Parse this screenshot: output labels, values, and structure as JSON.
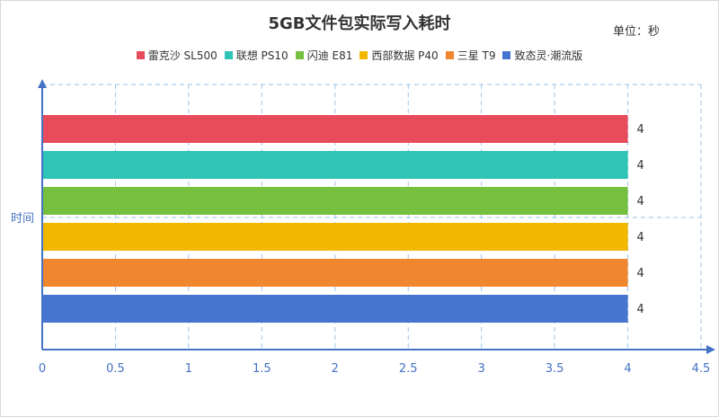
{
  "chart_data": {
    "type": "bar",
    "orientation": "horizontal",
    "title": "5GB文件包实际写入耗时",
    "unit_label": "单位：秒",
    "ylabel": "时间",
    "xlabel": "",
    "xlim": [
      0,
      4.5
    ],
    "x_ticks": [
      "0",
      "0.5",
      "1",
      "1.5",
      "2",
      "2.5",
      "3",
      "3.5",
      "4",
      "4.5"
    ],
    "grid": true,
    "legend_position": "top",
    "series": [
      {
        "name": "雷克沙 SL500",
        "value": 4,
        "label": "4",
        "color": "#e84c5b"
      },
      {
        "name": "联想 PS10",
        "value": 4,
        "label": "4",
        "color": "#2ec4b6"
      },
      {
        "name": "闪迪 E81",
        "value": 4,
        "label": "4",
        "color": "#76bf3f"
      },
      {
        "name": "西部数据 P40",
        "value": 4,
        "label": "4",
        "color": "#f2b800"
      },
      {
        "name": "三星 T9",
        "value": 4,
        "label": "4",
        "color": "#f0862e"
      },
      {
        "name": "致态灵·潮流版",
        "value": 4,
        "label": "4",
        "color": "#4575cf"
      }
    ],
    "axis_color": "#4472c4",
    "grid_color": "#9dc3e6"
  }
}
